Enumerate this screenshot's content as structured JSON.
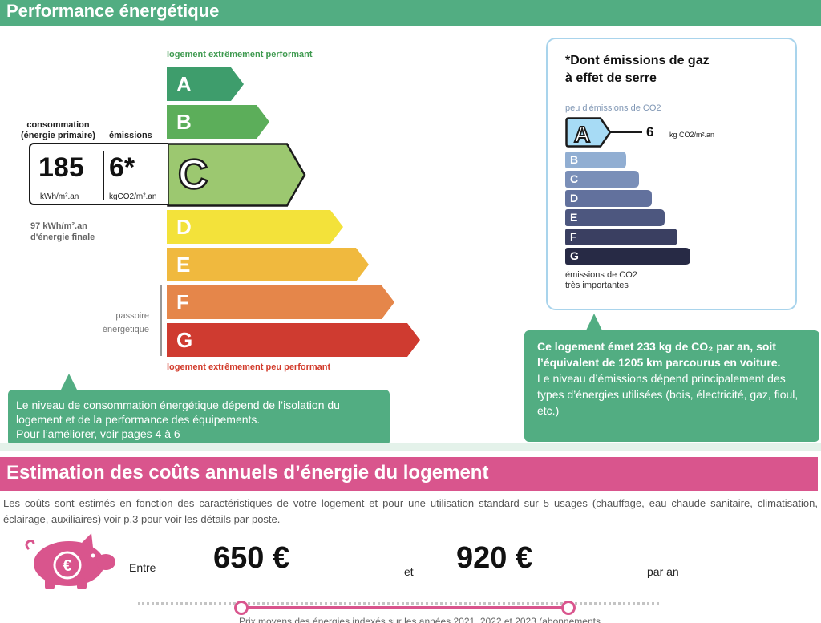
{
  "energy": {
    "header": "Performance énergétique",
    "top_label": "logement extrêmement performant",
    "bottom_label": "logement extrêmement peu performant",
    "consumption_label": "consommation\n(énergie primaire)",
    "emissions_label": "émissions",
    "consumption_value": "185",
    "consumption_unit": "kWh/m².an",
    "emissions_value": "6*",
    "emissions_unit": "kgCO2/m².an",
    "final_energy": "97 kWh/m².an\nd'énergie finale",
    "passoire": "passoire\nénergétique",
    "current_class": "C",
    "classes": [
      {
        "letter": "A",
        "color": "#3e9d6c"
      },
      {
        "letter": "B",
        "color": "#5cae5a"
      },
      {
        "letter": "C",
        "color": "#9cc870"
      },
      {
        "letter": "D",
        "color": "#f3e23a"
      },
      {
        "letter": "E",
        "color": "#f0b93e"
      },
      {
        "letter": "F",
        "color": "#e5864a"
      },
      {
        "letter": "G",
        "color": "#cf3b30"
      }
    ],
    "bubble": "Le niveau de consommation énergétique dépend de l’isolation du logement et de la performance des équipements.\nPour l’améliorer, voir pages 4 à 6"
  },
  "ges": {
    "title": "*Dont émissions de gaz\nà effet de serre",
    "top_label": "peu d'émissions de CO2",
    "bottom_label": "émissions de CO2\ntrès importantes",
    "current_class": "A",
    "value": "6",
    "unit": "kg CO2/m².an",
    "classes": [
      {
        "letter": "A",
        "color": "#a7dbf5"
      },
      {
        "letter": "B",
        "color": "#91aed2"
      },
      {
        "letter": "C",
        "color": "#7a8fb8"
      },
      {
        "letter": "D",
        "color": "#62719d"
      },
      {
        "letter": "E",
        "color": "#4d577f"
      },
      {
        "letter": "F",
        "color": "#3a3f61"
      },
      {
        "letter": "G",
        "color": "#272a45"
      }
    ],
    "bubble_strong": "Ce logement émet 233 kg de CO₂ par an, soit l’équivalent de 1205  km parcourus en voiture.",
    "bubble_text": "Le niveau d’émissions dépend principalement des types d’énergies utilisées (bois, électricité, gaz, fioul, etc.)"
  },
  "costs": {
    "header": "Estimation des coûts annuels d’énergie du logement",
    "description": "Les coûts sont estimés en fonction des caractéristiques de votre logement et pour une utilisation standard sur 5 usages (chauffage, eau chaude sanitaire, climatisation, éclairage, auxiliaires) voir p.3 pour voir les détails par poste.",
    "entre": "Entre",
    "min": "650 €",
    "et": "et",
    "max": "920 €",
    "par_an": "par an",
    "note": "Prix moyens des énergies indexés sur les années 2021, 2022 et 2023 (abonnements",
    "accent_color": "#d9558d"
  }
}
